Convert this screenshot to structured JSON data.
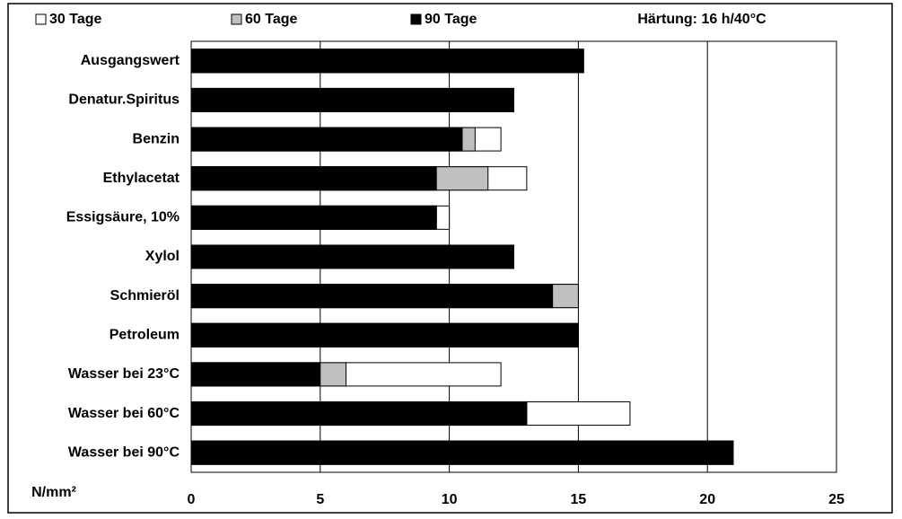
{
  "chart_data": {
    "type": "bar",
    "orientation": "horizontal",
    "mode": "overlap",
    "annotation": "Härtung: 16 h/40°C",
    "x_label": "N/mm²",
    "categories": [
      "Ausgangswert",
      "Denatur.Spiritus",
      "Benzin",
      "Ethylacetat",
      "Essigsäure, 10%",
      "Xylol",
      "Schmieröl",
      "Petroleum",
      "Wasser bei 23°C",
      "Wasser bei 60°C",
      "Wasser bei 90°C"
    ],
    "series": [
      {
        "name": "30 Tage",
        "color": "#ffffff",
        "values": [
          15.2,
          12.5,
          12,
          13,
          10,
          12.5,
          15,
          15,
          12,
          17,
          21
        ]
      },
      {
        "name": "60 Tage",
        "color": "#c0c0c0",
        "values": [
          15.2,
          12.5,
          11,
          11.5,
          9.5,
          12.5,
          15,
          15,
          6,
          13,
          21
        ]
      },
      {
        "name": "90 Tage",
        "color": "#000000",
        "values": [
          15.2,
          12.5,
          10.5,
          9.5,
          9.5,
          12.5,
          14,
          15,
          5,
          13,
          21
        ]
      }
    ],
    "xlim": [
      0,
      25
    ],
    "xticks": [
      0,
      5,
      10,
      15,
      20,
      25
    ],
    "grid": true
  }
}
